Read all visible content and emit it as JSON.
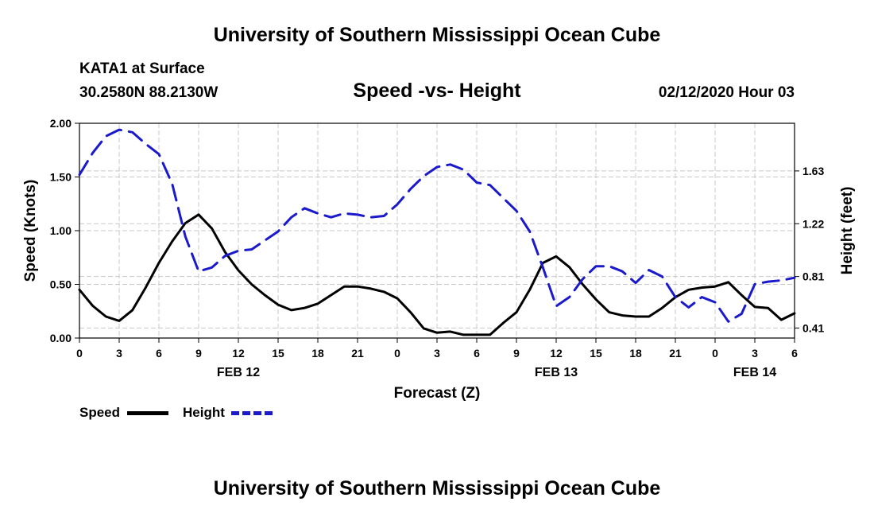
{
  "header": {
    "title": "University of Southern Mississippi Ocean Cube",
    "station": "KATA1 at Surface",
    "coords": "30.2580N 88.2130W",
    "subtitle": "Speed -vs- Height",
    "timestamp": "02/12/2020 Hour 03"
  },
  "footer": {
    "title": "University of Southern Mississippi Ocean Cube"
  },
  "legend": {
    "speed_label": "Speed",
    "height_label": "Height"
  },
  "colors": {
    "speed": "#000000",
    "height": "#1a1acc",
    "grid": "#c8c8c8"
  },
  "chart_data": {
    "type": "line",
    "title": "Speed -vs- Height",
    "xlabel": "Forecast (Z)",
    "ylabel": "Speed (Knots)",
    "y2label": "Height (feet)",
    "xlim": [
      0,
      54
    ],
    "ylim": [
      0,
      2.0
    ],
    "y2lim": [
      0.332,
      2.0
    ],
    "x_ticks": [
      0,
      3,
      6,
      9,
      12,
      15,
      18,
      21,
      24,
      27,
      30,
      33,
      36,
      39,
      42,
      45,
      48,
      51,
      54
    ],
    "x_tick_labels": [
      "0",
      "3",
      "6",
      "9",
      "12",
      "15",
      "18",
      "21",
      "0",
      "3",
      "6",
      "9",
      "12",
      "15",
      "18",
      "21",
      "0",
      "3",
      "6"
    ],
    "date_labels": [
      {
        "x": 12,
        "label": "FEB 12"
      },
      {
        "x": 36,
        "label": "FEB 13"
      },
      {
        "x": 51,
        "label": "FEB 14"
      }
    ],
    "y_ticks": [
      0,
      0.5,
      1.0,
      1.5,
      2.0
    ],
    "y_tick_labels": [
      "0.00",
      "0.50",
      "1.00",
      "1.50",
      "2.00"
    ],
    "y2_ticks": [
      0.41,
      0.81,
      1.22,
      1.63
    ],
    "y2_tick_labels": [
      "0.41",
      "0.81",
      "1.22",
      "1.63"
    ],
    "grid": true,
    "series": [
      {
        "name": "Speed",
        "axis": "left",
        "style": "solid",
        "x": [
          0,
          1,
          2,
          3,
          4,
          5,
          6,
          7,
          8,
          9,
          10,
          11,
          12,
          13,
          14,
          15,
          16,
          17,
          18,
          19,
          20,
          21,
          22,
          23,
          24,
          25,
          26,
          27,
          28,
          29,
          30,
          31,
          32,
          33,
          34,
          35,
          36,
          37,
          38,
          39,
          40,
          41,
          42,
          43,
          44,
          45,
          46,
          47,
          48,
          49,
          50,
          51,
          52,
          53,
          54
        ],
        "values": [
          0.45,
          0.3,
          0.2,
          0.16,
          0.26,
          0.47,
          0.7,
          0.9,
          1.07,
          1.15,
          1.02,
          0.8,
          0.63,
          0.5,
          0.4,
          0.31,
          0.26,
          0.28,
          0.32,
          0.4,
          0.48,
          0.48,
          0.46,
          0.43,
          0.37,
          0.24,
          0.09,
          0.05,
          0.06,
          0.03,
          0.03,
          0.03,
          0.14,
          0.24,
          0.45,
          0.7,
          0.76,
          0.66,
          0.5,
          0.36,
          0.24,
          0.21,
          0.2,
          0.2,
          0.28,
          0.38,
          0.45,
          0.47,
          0.48,
          0.52,
          0.4,
          0.29,
          0.28,
          0.17,
          0.23
        ]
      },
      {
        "name": "Height",
        "axis": "right",
        "style": "dashed",
        "x": [
          0,
          1,
          2,
          3,
          4,
          5,
          6,
          7,
          8,
          9,
          10,
          11,
          12,
          13,
          14,
          15,
          16,
          17,
          18,
          19,
          20,
          21,
          22,
          23,
          24,
          25,
          26,
          27,
          28,
          29,
          30,
          31,
          32,
          33,
          34,
          35,
          36,
          37,
          38,
          39,
          40,
          41,
          42,
          43,
          44,
          45,
          46,
          47,
          48,
          49,
          50,
          51,
          52,
          53,
          54
        ],
        "values": [
          1.6,
          1.77,
          1.9,
          1.95,
          1.93,
          1.84,
          1.76,
          1.53,
          1.12,
          0.85,
          0.88,
          0.97,
          1.01,
          1.02,
          1.09,
          1.16,
          1.27,
          1.34,
          1.3,
          1.27,
          1.3,
          1.29,
          1.27,
          1.28,
          1.37,
          1.49,
          1.59,
          1.66,
          1.68,
          1.64,
          1.54,
          1.52,
          1.42,
          1.32,
          1.16,
          0.88,
          0.58,
          0.65,
          0.79,
          0.89,
          0.89,
          0.85,
          0.76,
          0.86,
          0.81,
          0.65,
          0.57,
          0.65,
          0.61,
          0.46,
          0.52,
          0.75,
          0.77,
          0.78,
          0.8
        ]
      }
    ]
  }
}
